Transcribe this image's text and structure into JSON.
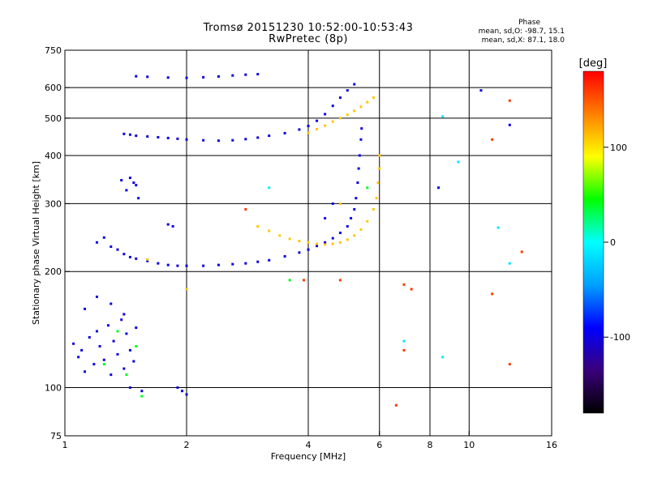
{
  "chart_data": {
    "type": "scatter",
    "title": "Tromsø 20151230 10:52:00-10:53:43",
    "subtitle": "RwPretec (8p)",
    "xlabel": "Frequency [MHz]",
    "ylabel": "Stationary phase Virtual Height [km]",
    "x_scale": "log",
    "y_scale": "log",
    "xlim": [
      1,
      16
    ],
    "ylim": [
      75,
      750
    ],
    "x_ticks": [
      1,
      2,
      4,
      6,
      8,
      10,
      16
    ],
    "y_ticks": [
      75,
      100,
      200,
      300,
      400,
      500,
      600,
      750
    ],
    "x_gridlines": [
      2,
      4,
      6,
      8,
      10
    ],
    "y_gridlines": [
      100,
      200,
      300,
      400,
      500,
      600
    ],
    "colorbar": {
      "label": "[deg]",
      "range": [
        -180,
        180
      ],
      "ticks": [
        100,
        0,
        -100
      ],
      "colors": [
        "#000000",
        "#3a007a",
        "#0000ff",
        "#00a0ff",
        "#00ffff",
        "#00ff00",
        "#ffff00",
        "#ff8000",
        "#ff0000"
      ]
    },
    "phase_stats": {
      "heading": "Phase",
      "o_mode": "mean, sd,O: -98.7, 15.1",
      "x_mode": "mean, sd,X: 87.1, 18.0"
    },
    "series": [
      {
        "phase": -100,
        "points": [
          [
            1.3,
            232
          ],
          [
            1.35,
            228
          ],
          [
            1.4,
            222
          ],
          [
            1.45,
            218
          ],
          [
            1.5,
            216
          ],
          [
            1.6,
            213
          ],
          [
            1.7,
            210
          ],
          [
            1.8,
            208
          ],
          [
            1.9,
            207
          ],
          [
            2.0,
            207
          ],
          [
            2.2,
            207
          ],
          [
            2.4,
            208
          ],
          [
            2.6,
            209
          ],
          [
            2.8,
            210
          ],
          [
            3.0,
            212
          ],
          [
            3.2,
            214
          ],
          [
            3.5,
            219
          ],
          [
            3.8,
            224
          ],
          [
            4.0,
            228
          ],
          [
            4.2,
            233
          ],
          [
            4.4,
            238
          ],
          [
            4.6,
            244
          ],
          [
            4.8,
            252
          ],
          [
            5.0,
            262
          ],
          [
            5.1,
            275
          ],
          [
            5.2,
            290
          ],
          [
            5.25,
            310
          ],
          [
            5.3,
            340
          ],
          [
            5.33,
            370
          ],
          [
            5.36,
            400
          ],
          [
            5.4,
            440
          ],
          [
            5.42,
            470
          ],
          [
            1.4,
            455
          ],
          [
            1.45,
            453
          ],
          [
            1.5,
            450
          ],
          [
            1.6,
            448
          ],
          [
            1.7,
            446
          ],
          [
            1.8,
            444
          ],
          [
            1.9,
            442
          ],
          [
            2.0,
            440
          ],
          [
            2.2,
            438
          ],
          [
            2.4,
            437
          ],
          [
            2.6,
            438
          ],
          [
            2.8,
            441
          ],
          [
            3.0,
            445
          ],
          [
            3.2,
            450
          ],
          [
            3.5,
            457
          ],
          [
            3.8,
            467
          ],
          [
            4.0,
            477
          ],
          [
            4.2,
            492
          ],
          [
            4.4,
            512
          ],
          [
            4.6,
            538
          ],
          [
            4.8,
            565
          ],
          [
            5.0,
            590
          ],
          [
            5.2,
            612
          ],
          [
            1.5,
            642
          ],
          [
            1.6,
            640
          ],
          [
            1.8,
            637
          ],
          [
            2.0,
            636
          ],
          [
            2.2,
            638
          ],
          [
            2.4,
            641
          ],
          [
            2.6,
            645
          ],
          [
            2.8,
            648
          ],
          [
            3.0,
            650
          ],
          [
            1.45,
            350
          ],
          [
            1.48,
            340
          ],
          [
            1.5,
            335
          ],
          [
            1.42,
            325
          ],
          [
            1.52,
            310
          ],
          [
            1.38,
            345
          ],
          [
            1.05,
            130
          ],
          [
            1.08,
            120
          ],
          [
            1.1,
            125
          ],
          [
            1.12,
            110
          ],
          [
            1.15,
            135
          ],
          [
            1.18,
            115
          ],
          [
            1.2,
            140
          ],
          [
            1.22,
            128
          ],
          [
            1.25,
            118
          ],
          [
            1.28,
            145
          ],
          [
            1.3,
            108
          ],
          [
            1.32,
            132
          ],
          [
            1.35,
            122
          ],
          [
            1.38,
            150
          ],
          [
            1.4,
            112
          ],
          [
            1.42,
            138
          ],
          [
            1.45,
            125
          ],
          [
            1.48,
            117
          ],
          [
            1.5,
            143
          ],
          [
            1.12,
            160
          ],
          [
            1.2,
            172
          ],
          [
            1.3,
            165
          ],
          [
            1.4,
            155
          ],
          [
            1.45,
            100
          ],
          [
            1.55,
            98
          ],
          [
            1.9,
            100
          ],
          [
            1.95,
            98
          ],
          [
            2.0,
            96
          ],
          [
            1.8,
            265
          ],
          [
            1.85,
            262
          ],
          [
            1.2,
            238
          ],
          [
            1.25,
            245
          ],
          [
            8.4,
            330
          ],
          [
            10.7,
            590
          ],
          [
            12.6,
            480
          ],
          [
            4.4,
            275
          ],
          [
            4.6,
            300
          ]
        ]
      },
      {
        "phase": 110,
        "points": [
          [
            3.0,
            262
          ],
          [
            3.2,
            255
          ],
          [
            3.4,
            248
          ],
          [
            3.6,
            243
          ],
          [
            3.8,
            240
          ],
          [
            4.0,
            238
          ],
          [
            4.2,
            236
          ],
          [
            4.4,
            235
          ],
          [
            4.6,
            236
          ],
          [
            4.8,
            238
          ],
          [
            5.0,
            242
          ],
          [
            5.2,
            248
          ],
          [
            5.4,
            257
          ],
          [
            5.6,
            270
          ],
          [
            5.8,
            290
          ],
          [
            5.9,
            310
          ],
          [
            5.95,
            340
          ],
          [
            6.0,
            370
          ],
          [
            6.0,
            400
          ],
          [
            4.0,
            458
          ],
          [
            4.2,
            468
          ],
          [
            4.4,
            478
          ],
          [
            4.6,
            490
          ],
          [
            4.8,
            500
          ],
          [
            5.0,
            510
          ],
          [
            5.2,
            522
          ],
          [
            5.4,
            535
          ],
          [
            5.6,
            550
          ],
          [
            5.8,
            565
          ],
          [
            1.6,
            215
          ],
          [
            2.0,
            180
          ],
          [
            4.8,
            300
          ]
        ]
      },
      {
        "phase": 40,
        "points": [
          [
            1.25,
            115
          ],
          [
            1.35,
            140
          ],
          [
            1.42,
            108
          ],
          [
            1.5,
            128
          ],
          [
            1.55,
            95
          ],
          [
            3.6,
            190
          ],
          [
            5.6,
            330
          ]
        ]
      },
      {
        "phase": 160,
        "points": [
          [
            2.8,
            290
          ],
          [
            3.9,
            190
          ],
          [
            4.8,
            190
          ],
          [
            6.6,
            90
          ],
          [
            6.9,
            185
          ],
          [
            7.2,
            180
          ],
          [
            6.9,
            125
          ],
          [
            12.6,
            555
          ],
          [
            11.4,
            440
          ],
          [
            11.4,
            175
          ],
          [
            12.6,
            115
          ],
          [
            13.5,
            225
          ]
        ]
      },
      {
        "phase": -10,
        "points": [
          [
            3.2,
            330
          ],
          [
            6.9,
            132
          ],
          [
            8.6,
            120
          ],
          [
            9.4,
            385
          ],
          [
            11.8,
            260
          ],
          [
            12.6,
            210
          ],
          [
            8.6,
            505
          ]
        ]
      }
    ]
  }
}
